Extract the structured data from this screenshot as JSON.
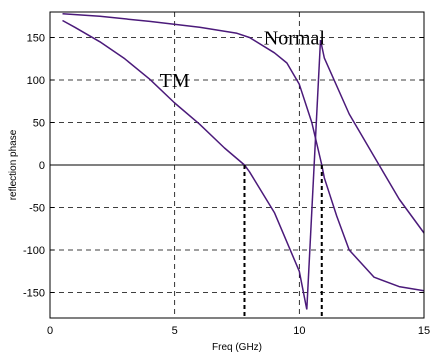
{
  "chart_data": {
    "type": "line",
    "title": "",
    "xlabel": "Freq (GHz)",
    "ylabel": "reflection phase",
    "xlim": [
      0,
      15
    ],
    "ylim": [
      -180,
      180
    ],
    "xticks": [
      0,
      5,
      10,
      15
    ],
    "yticks": [
      -150,
      -100,
      -50,
      0,
      50,
      100,
      150
    ],
    "grid": true,
    "grid_style": "dashed",
    "line_color": "#4b1a7a",
    "annotations": [
      {
        "text": "Normal",
        "x": 9.8,
        "y": 150
      },
      {
        "text": "TM",
        "x": 5.0,
        "y": 100
      }
    ],
    "crossing_markers": [
      7.8,
      10.9
    ],
    "series": [
      {
        "x": [
          0.5,
          1,
          2,
          3,
          4,
          5,
          6,
          7,
          7.8,
          8,
          9,
          10,
          10.3
        ],
        "y": [
          170,
          162,
          145,
          125,
          101,
          73,
          48,
          20,
          0,
          -8,
          -56,
          -125,
          -170
        ]
      },
      {
        "x": [
          10.3,
          10.85
        ],
        "y": [
          -170,
          147
        ]
      },
      {
        "x": [
          10.85,
          11,
          12,
          13,
          14,
          15
        ],
        "y": [
          147,
          126,
          60,
          10,
          -40,
          -80
        ]
      },
      {
        "x": [
          0.5,
          2,
          4,
          6,
          7.5,
          8,
          9,
          9.5,
          10,
          10.5,
          10.9,
          11,
          11.5,
          12,
          13,
          14,
          15
        ],
        "y": [
          178,
          175,
          169,
          162,
          155,
          150,
          132,
          120,
          95,
          50,
          0,
          -15,
          -60,
          -100,
          -132,
          -143,
          -148
        ]
      }
    ]
  }
}
